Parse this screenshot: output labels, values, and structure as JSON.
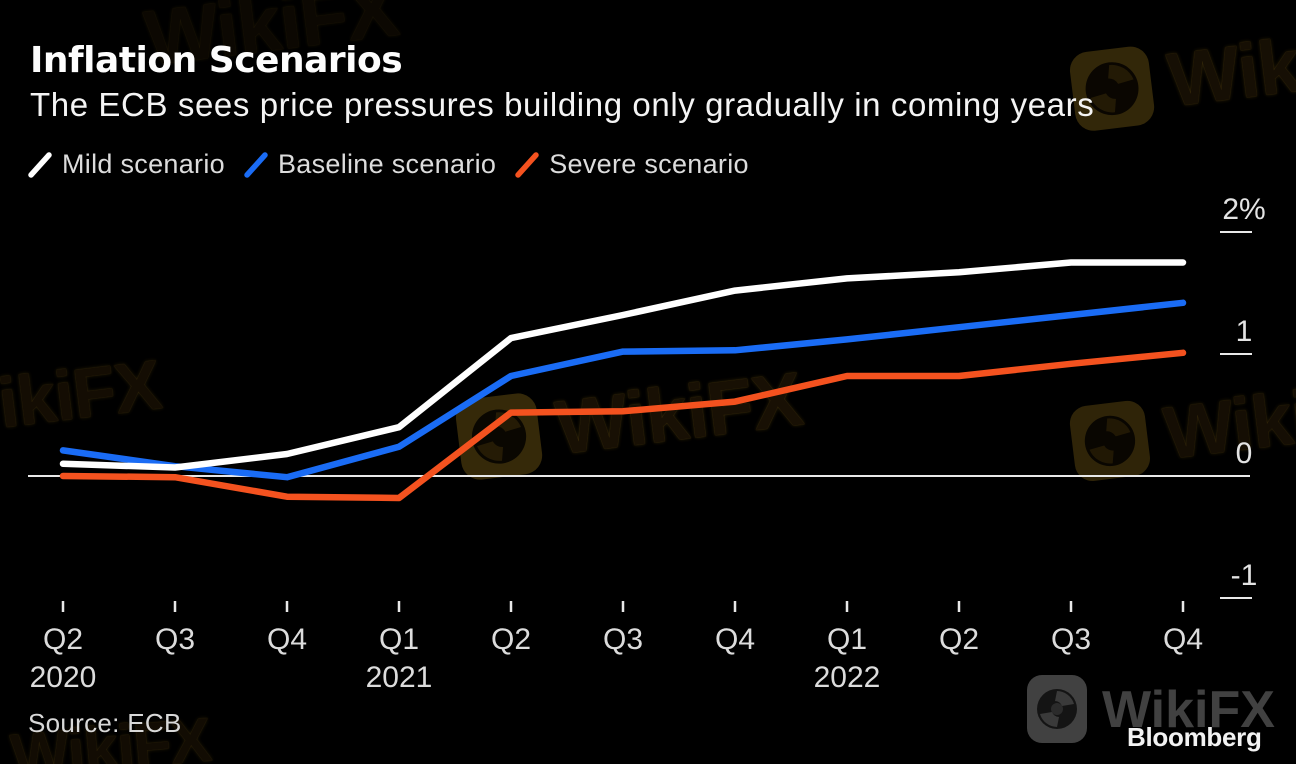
{
  "header": {
    "title": "Inflation Scenarios",
    "subtitle": "The ECB sees price pressures building only gradually in coming years"
  },
  "chart_data": {
    "type": "line",
    "title": "Inflation Scenarios",
    "subtitle": "The ECB sees price pressures building only gradually in coming years",
    "unit": "%",
    "categories": [
      "Q2 2020",
      "Q3 2020",
      "Q4 2020",
      "Q1 2021",
      "Q2 2021",
      "Q3 2021",
      "Q4 2021",
      "Q1 2022",
      "Q2 2022",
      "Q3 2022",
      "Q4 2022"
    ],
    "x_tick_labels": [
      "Q2",
      "Q3",
      "Q4",
      "Q1",
      "Q2",
      "Q3",
      "Q4",
      "Q1",
      "Q2",
      "Q3",
      "Q4"
    ],
    "year_labels": [
      {
        "label": "2020",
        "tick_index": 0
      },
      {
        "label": "2021",
        "tick_index": 3
      },
      {
        "label": "2022",
        "tick_index": 7
      }
    ],
    "series": [
      {
        "name": "Mild scenario",
        "color": "#ffffff",
        "values": [
          0.1,
          0.07,
          0.18,
          0.4,
          1.13,
          1.32,
          1.52,
          1.62,
          1.67,
          1.75,
          1.75
        ]
      },
      {
        "name": "Baseline scenario",
        "color": "#1a6cf5",
        "values": [
          0.21,
          0.08,
          -0.01,
          0.24,
          0.82,
          1.02,
          1.03,
          1.12,
          1.22,
          1.32,
          1.42
        ]
      },
      {
        "name": "Severe scenario",
        "color": "#f4521f",
        "values": [
          0.0,
          -0.01,
          -0.17,
          -0.18,
          0.52,
          0.53,
          0.61,
          0.82,
          0.82,
          0.92,
          1.01
        ]
      }
    ],
    "y_ticks": [
      {
        "label": "2%",
        "value": 2
      },
      {
        "label": "1",
        "value": 1
      },
      {
        "label": "0",
        "value": 0
      },
      {
        "label": "-1",
        "value": -1
      }
    ],
    "ylim": [
      -1.4,
      2.3
    ],
    "grid": false,
    "zero_line": true,
    "legend_position": "top-left"
  },
  "footer": {
    "source_label": "Source: ECB",
    "brand": "Bloomberg"
  },
  "watermark": {
    "text": "WikiFX",
    "gold_color": "#6b5314",
    "gray_color": "#414141"
  },
  "colors": {
    "background": "#000000",
    "axis_line": "#e8e8e8",
    "axis_text": "#e3e3e3",
    "title_text": "#fdfdfd"
  }
}
